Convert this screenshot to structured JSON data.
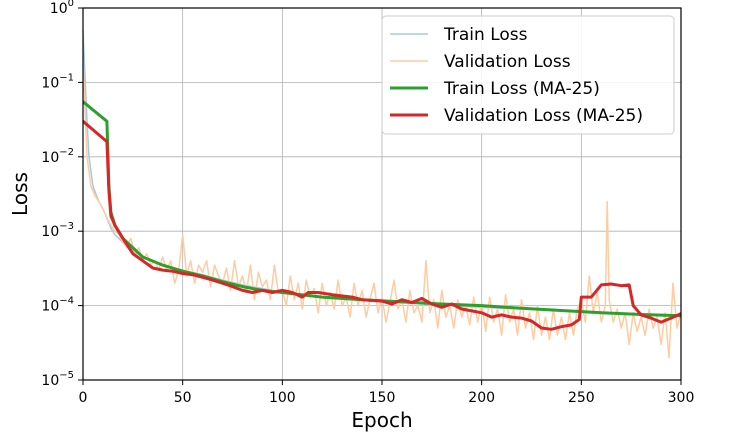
{
  "chart_data": {
    "type": "line",
    "title": "",
    "xlabel": "Epoch",
    "ylabel": "Loss",
    "xlim": [
      0,
      300
    ],
    "ylim": [
      1e-05,
      1
    ],
    "yscale": "log",
    "grid": true,
    "legend_position": "top-right",
    "x_ticks": [
      {
        "value": 0,
        "label": "0"
      },
      {
        "value": 50,
        "label": "50"
      },
      {
        "value": 100,
        "label": "100"
      },
      {
        "value": 150,
        "label": "150"
      },
      {
        "value": 200,
        "label": "200"
      },
      {
        "value": 250,
        "label": "250"
      },
      {
        "value": 300,
        "label": "300"
      }
    ],
    "y_ticks": [
      {
        "value": 1e-05,
        "base": "10",
        "exp": "−5"
      },
      {
        "value": 0.0001,
        "base": "10",
        "exp": "−4"
      },
      {
        "value": 0.001,
        "base": "10",
        "exp": "−3"
      },
      {
        "value": 0.01,
        "base": "10",
        "exp": "−2"
      },
      {
        "value": 0.1,
        "base": "10",
        "exp": "−1"
      },
      {
        "value": 1,
        "base": "10",
        "exp": "0"
      }
    ],
    "series": [
      {
        "name": "Train Loss",
        "color": "#a6c8e4",
        "width": 1.5,
        "x": [
          0,
          1,
          2,
          3,
          5,
          8,
          10,
          12,
          14,
          16,
          20,
          25,
          30,
          40,
          50,
          60,
          70,
          80,
          90,
          100,
          120,
          140,
          160,
          180,
          200,
          220,
          240,
          260,
          280,
          300
        ],
        "y": [
          0.5,
          0.12,
          0.03,
          0.01,
          0.004,
          0.0025,
          0.002,
          0.0015,
          0.0011,
          0.0009,
          0.0007,
          0.00055,
          0.00045,
          0.00035,
          0.0003,
          0.00026,
          0.00022,
          0.00019,
          0.00017,
          0.00015,
          0.00013,
          0.00012,
          0.00011,
          0.0001,
          9.5e-05,
          9e-05,
          8.5e-05,
          8e-05,
          7.7e-05,
          7.5e-05
        ]
      },
      {
        "name": "Validation Loss",
        "color": "#ffcba0",
        "width": 1.5,
        "x": [
          0,
          2,
          4,
          6,
          8,
          10,
          12,
          14,
          16,
          18,
          20,
          22,
          24,
          26,
          28,
          30,
          32,
          34,
          36,
          38,
          40,
          42,
          44,
          46,
          48,
          50,
          52,
          54,
          56,
          58,
          60,
          62,
          64,
          66,
          68,
          70,
          72,
          74,
          76,
          78,
          80,
          82,
          84,
          86,
          88,
          90,
          92,
          94,
          96,
          98,
          100,
          102,
          104,
          106,
          108,
          110,
          112,
          114,
          116,
          118,
          120,
          122,
          124,
          126,
          128,
          130,
          132,
          134,
          136,
          138,
          140,
          142,
          144,
          146,
          148,
          150,
          152,
          154,
          156,
          158,
          160,
          162,
          164,
          166,
          168,
          170,
          172,
          174,
          176,
          178,
          180,
          182,
          184,
          186,
          188,
          190,
          192,
          194,
          196,
          198,
          200,
          202,
          204,
          206,
          208,
          210,
          212,
          214,
          216,
          218,
          220,
          222,
          224,
          226,
          228,
          230,
          232,
          234,
          236,
          238,
          240,
          242,
          244,
          246,
          248,
          250,
          252,
          254,
          256,
          258,
          260,
          262,
          263,
          264,
          266,
          268,
          270,
          272,
          274,
          276,
          278,
          280,
          282,
          284,
          286,
          288,
          290,
          292,
          294,
          296,
          298,
          300
        ],
        "y": [
          0.2,
          0.01,
          0.004,
          0.003,
          0.0025,
          0.002,
          0.0015,
          0.0012,
          0.001,
          0.0009,
          0.0007,
          0.0006,
          0.0008,
          0.0005,
          0.0006,
          0.0004,
          0.0005,
          0.00035,
          0.0004,
          0.0003,
          0.00045,
          0.0003,
          0.0004,
          0.0002,
          0.0003,
          0.0009,
          0.00025,
          0.0004,
          0.0002,
          0.00035,
          0.00028,
          0.0004,
          0.00018,
          0.00035,
          0.00025,
          0.0002,
          0.00032,
          0.00016,
          0.0004,
          0.00018,
          0.00025,
          0.00015,
          0.00035,
          0.00012,
          0.00028,
          0.00018,
          0.00022,
          0.00012,
          0.00035,
          0.00015,
          0.00016,
          0.0001,
          0.00025,
          0.00012,
          0.0002,
          9e-05,
          0.00022,
          0.00013,
          0.00017,
          8e-05,
          0.0002,
          0.0001,
          0.00015,
          9e-05,
          0.00022,
          0.0001,
          0.00013,
          7e-05,
          0.0002,
          0.0001,
          0.00016,
          7e-05,
          0.00012,
          0.0002,
          8e-05,
          0.00013,
          6e-05,
          0.00011,
          0.00022,
          9e-05,
          0.00012,
          6e-05,
          0.00016,
          8e-05,
          0.0001,
          6e-05,
          0.0004,
          8e-05,
          0.00012,
          5e-05,
          0.00016,
          7e-05,
          0.0001,
          5e-05,
          0.00012,
          7e-05,
          0.0001,
          5.5e-05,
          0.00013,
          6e-05,
          0.00011,
          4.5e-05,
          0.00013,
          6e-05,
          9e-05,
          4e-05,
          0.00014,
          6e-05,
          9e-05,
          4e-05,
          0.00012,
          5e-05,
          8e-05,
          3.5e-05,
          0.0001,
          4e-05,
          7e-05,
          3.5e-05,
          9e-05,
          4e-05,
          7e-05,
          3.5e-05,
          8e-05,
          4e-05,
          9e-05,
          0.00012,
          6e-05,
          0.00025,
          8e-05,
          0.00015,
          6e-05,
          0.0001,
          0.0025,
          0.00012,
          6e-05,
          9e-05,
          5e-05,
          8e-05,
          3e-05,
          8e-05,
          4.5e-05,
          7e-05,
          4e-05,
          9e-05,
          5e-05,
          7e-05,
          3e-05,
          8e-05,
          2e-05,
          0.0002,
          5e-05,
          8e-05
        ]
      },
      {
        "name": "Train Loss (MA-25)",
        "color": "#2ca02c",
        "width": 3,
        "x": [
          0,
          12,
          13,
          14,
          16,
          20,
          25,
          30,
          40,
          50,
          60,
          70,
          80,
          90,
          100,
          120,
          140,
          160,
          180,
          200,
          220,
          240,
          260,
          280,
          300
        ],
        "y": [
          0.055,
          0.03,
          0.004,
          0.0018,
          0.0012,
          0.0008,
          0.0006,
          0.00045,
          0.00035,
          0.00029,
          0.00025,
          0.00021,
          0.00018,
          0.00016,
          0.00015,
          0.00013,
          0.00012,
          0.000112,
          0.000105,
          0.0001,
          9.2e-05,
          8.6e-05,
          8e-05,
          7.6e-05,
          7.3e-05
        ]
      },
      {
        "name": "Validation Loss (MA-25)",
        "color": "#d62728",
        "width": 3,
        "x": [
          0,
          12,
          13,
          14,
          16,
          20,
          25,
          30,
          35,
          40,
          45,
          50,
          55,
          60,
          65,
          70,
          75,
          80,
          85,
          90,
          95,
          100,
          105,
          110,
          113,
          118,
          125,
          135,
          140,
          150,
          155,
          160,
          165,
          170,
          175,
          180,
          185,
          190,
          195,
          200,
          205,
          210,
          215,
          220,
          225,
          230,
          235,
          240,
          245,
          249,
          250,
          255,
          260,
          265,
          270,
          274,
          276,
          280,
          285,
          290,
          295,
          300
        ],
        "y": [
          0.03,
          0.016,
          0.0035,
          0.0016,
          0.0012,
          0.0008,
          0.0005,
          0.0004,
          0.00032,
          0.0003,
          0.00029,
          0.00027,
          0.00026,
          0.00024,
          0.00022,
          0.0002,
          0.00018,
          0.00016,
          0.00015,
          0.00016,
          0.00015,
          0.00016,
          0.00015,
          0.00013,
          0.00015,
          0.00015,
          0.00014,
          0.00013,
          0.00012,
          0.000115,
          0.000105,
          0.00012,
          0.00011,
          0.000125,
          0.000105,
          9.5e-05,
          0.000105,
          9e-05,
          8.5e-05,
          8e-05,
          7e-05,
          7.5e-05,
          7e-05,
          6.8e-05,
          6.2e-05,
          5e-05,
          4.8e-05,
          5.2e-05,
          5.5e-05,
          6.5e-05,
          0.00013,
          0.00013,
          0.00019,
          0.000195,
          0.000185,
          0.00019,
          0.0001,
          7.5e-05,
          6.8e-05,
          6e-05,
          6.8e-05,
          7.8e-05
        ]
      }
    ]
  }
}
